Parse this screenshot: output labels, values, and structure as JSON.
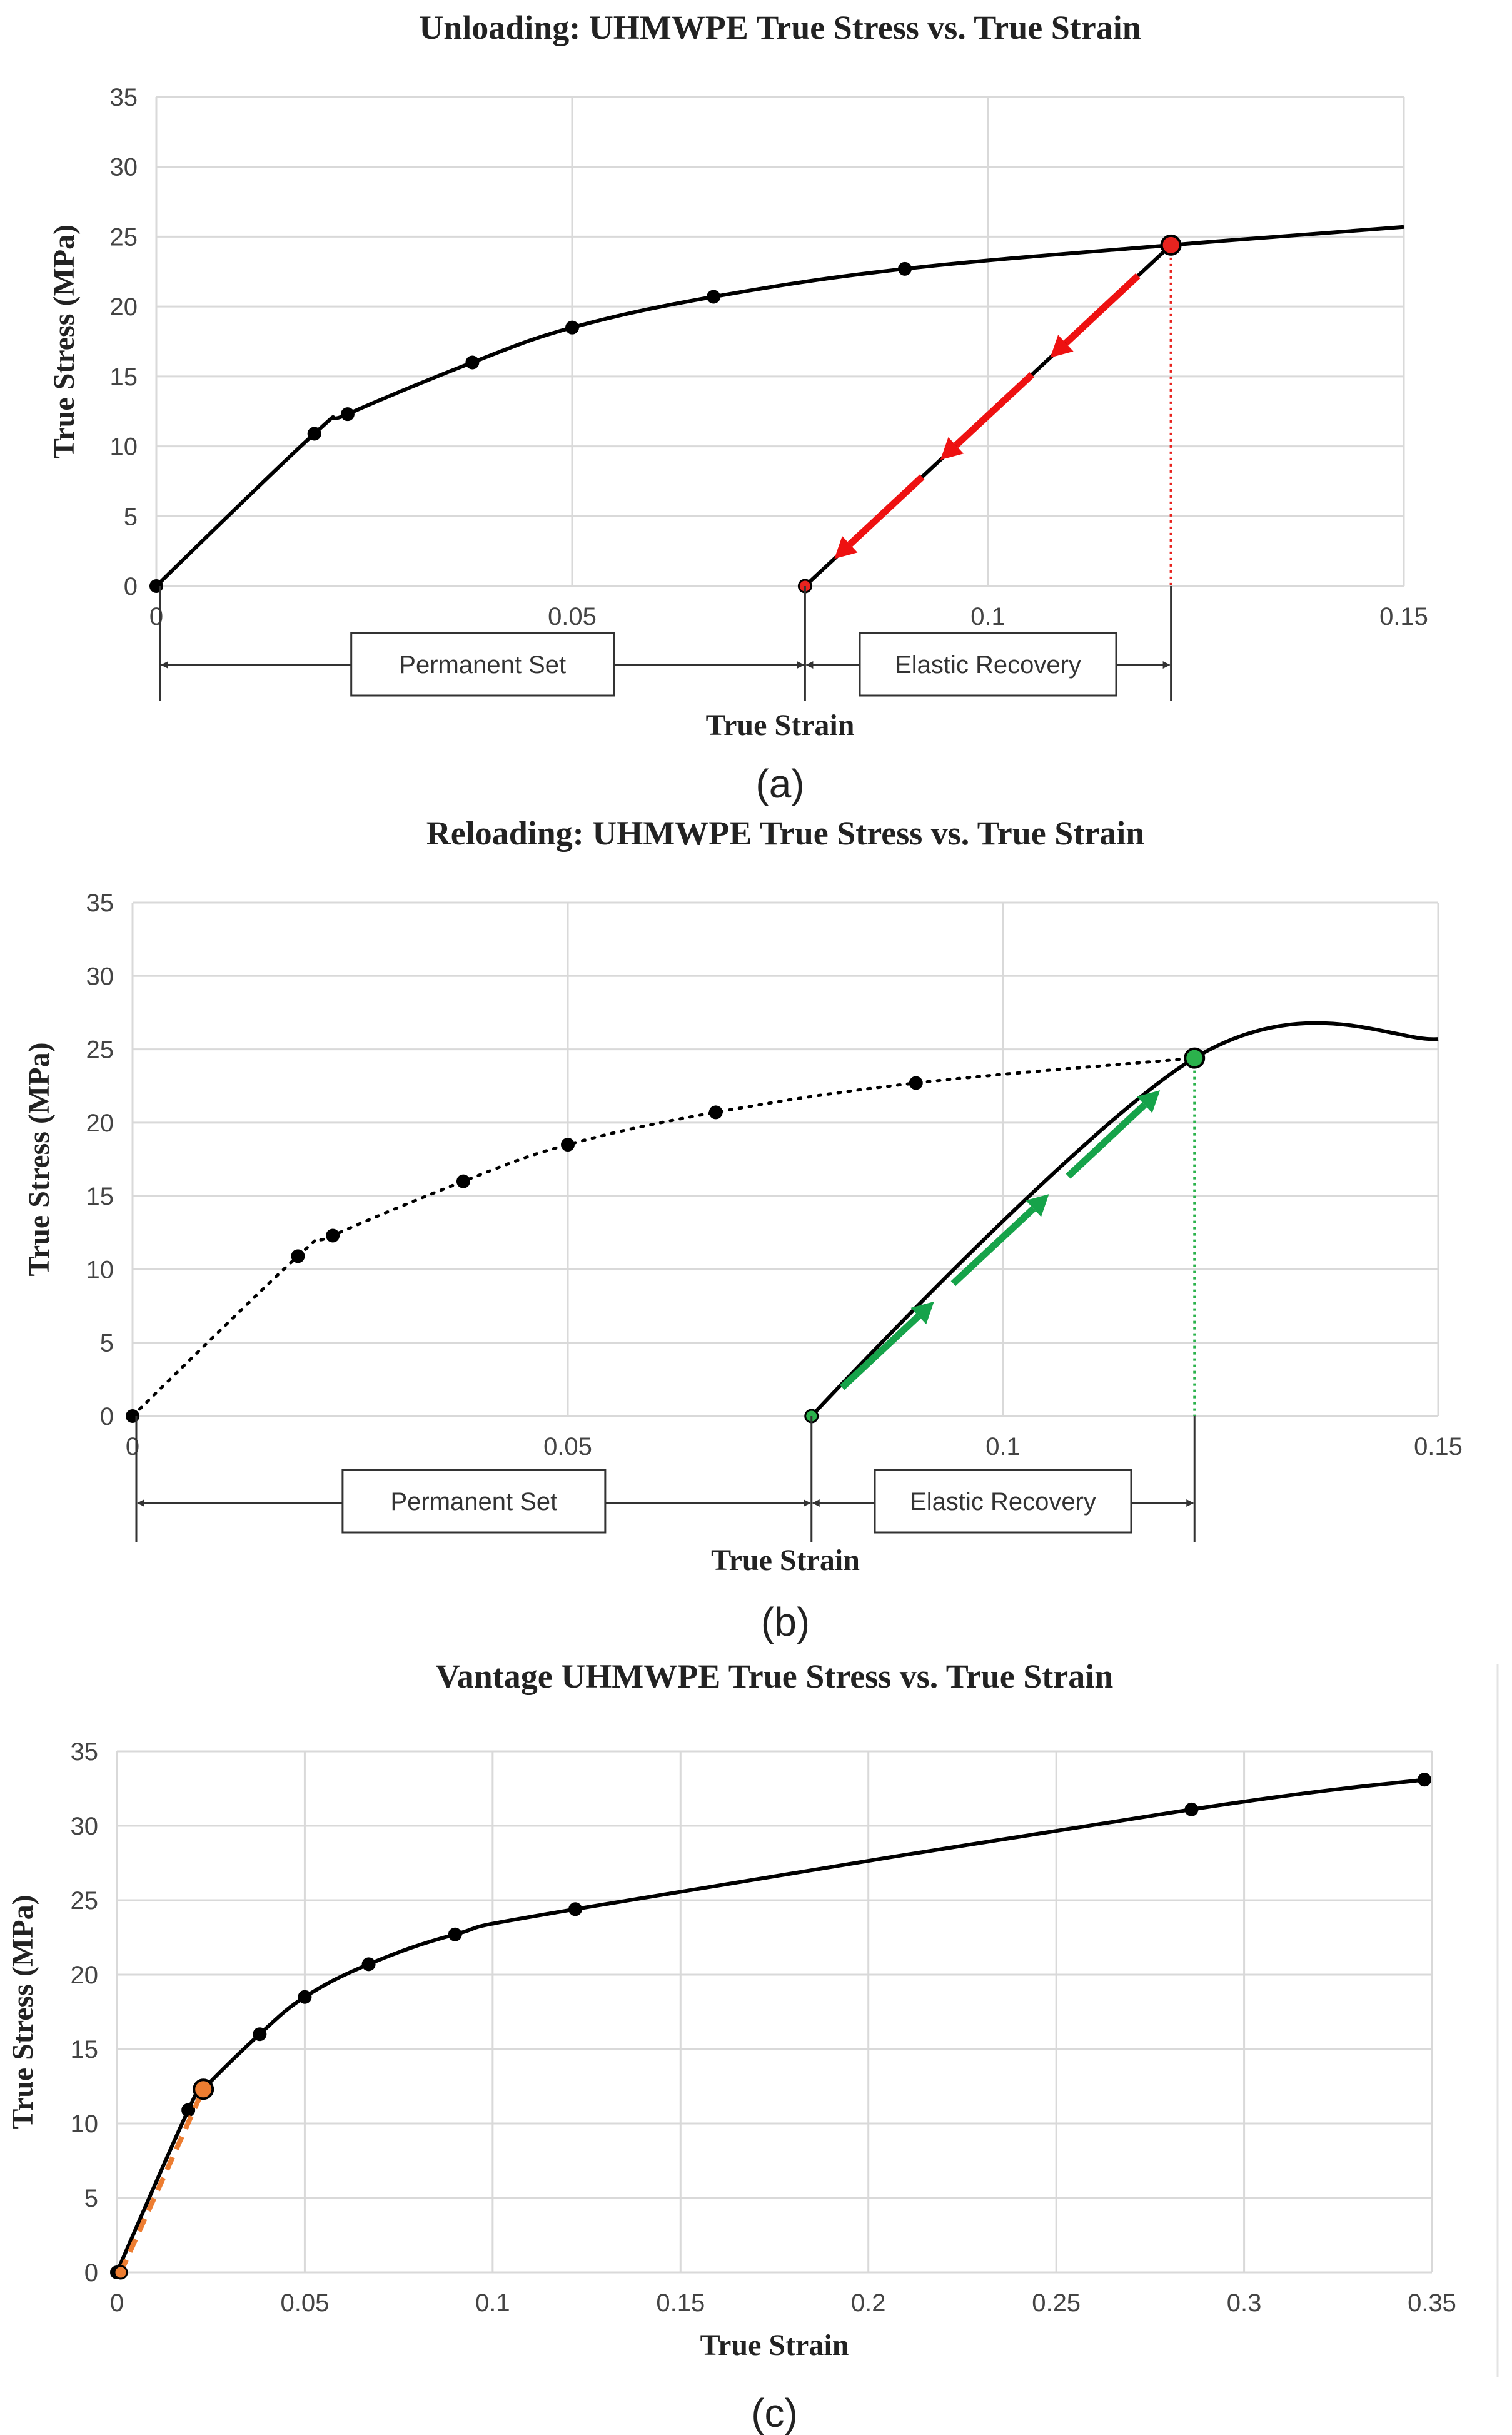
{
  "chart_data": [
    {
      "type": "line",
      "title": "Unloading: UHMWPE True Stress vs. True Strain",
      "xlabel": "True Strain",
      "ylabel": "True Stress (MPa)",
      "xlim": [
        0,
        0.15
      ],
      "ylim": [
        0,
        35
      ],
      "xticks": [
        "0",
        "0.05",
        "0.1",
        "0.15"
      ],
      "yticks": [
        "0",
        "5",
        "10",
        "15",
        "20",
        "25",
        "30",
        "35"
      ],
      "grid": true,
      "series": [
        {
          "style": "solid",
          "color": "#000000",
          "x": [
            0,
            0.019,
            0.023,
            0.038,
            0.05,
            0.067,
            0.09,
            0.122,
            0.15
          ],
          "y": [
            0,
            10.9,
            12.3,
            16.0,
            18.5,
            20.7,
            22.7,
            24.4,
            25.7
          ],
          "markers": [
            0,
            1,
            2,
            3,
            4,
            5,
            6
          ]
        },
        {
          "style": "solid",
          "color": "#000000",
          "x": [
            0.078,
            0.122
          ],
          "y": [
            0,
            24.4
          ]
        }
      ],
      "highlight_points": [
        {
          "x": 0.122,
          "y": 24.4,
          "color": "#e8231f"
        },
        {
          "x": 0.078,
          "y": 0,
          "color": "#e8231f"
        }
      ],
      "arrows": {
        "color": "#ee1111",
        "direction": "down"
      },
      "drop_line_color": "#e8231f",
      "annotations": {
        "permanent_set": "Permanent Set",
        "elastic_recovery": "Elastic Recovery"
      },
      "panel_label": "(a)"
    },
    {
      "type": "line",
      "title": "Reloading: UHMWPE True Stress vs. True Strain",
      "xlabel": "True Strain",
      "ylabel": "True Stress (MPa)",
      "xlim": [
        0,
        0.15
      ],
      "ylim": [
        0,
        35
      ],
      "xticks": [
        "0",
        "0.05",
        "0.1",
        "0.15"
      ],
      "yticks": [
        "0",
        "5",
        "10",
        "15",
        "20",
        "25",
        "30",
        "35"
      ],
      "grid": true,
      "series": [
        {
          "style": "dotted",
          "color": "#000000",
          "x": [
            0,
            0.019,
            0.023,
            0.038,
            0.05,
            0.067,
            0.09,
            0.122
          ],
          "y": [
            0,
            10.9,
            12.3,
            16.0,
            18.5,
            20.7,
            22.7,
            24.4
          ],
          "markers": [
            0,
            1,
            2,
            3,
            4,
            5,
            6
          ]
        },
        {
          "style": "solid",
          "color": "#000000",
          "x": [
            0.078,
            0.122,
            0.15
          ],
          "y": [
            0,
            24.4,
            25.7
          ]
        }
      ],
      "highlight_points": [
        {
          "x": 0.122,
          "y": 24.4,
          "color": "#2bb24c"
        },
        {
          "x": 0.078,
          "y": 0,
          "color": "#2bb24c"
        }
      ],
      "arrows": {
        "color": "#16a34a",
        "direction": "up"
      },
      "drop_line_color": "#2bb24c",
      "annotations": {
        "permanent_set": "Permanent Set",
        "elastic_recovery": "Elastic Recovery"
      },
      "panel_label": "(b)"
    },
    {
      "type": "line",
      "title": "Vantage UHMWPE True Stress vs. True Strain",
      "xlabel": "True Strain",
      "ylabel": "True Stress (MPa)",
      "xlim": [
        0,
        0.35
      ],
      "ylim": [
        0,
        35
      ],
      "xticks": [
        "0",
        "0.05",
        "0.1",
        "0.15",
        "0.2",
        "0.25",
        "0.3",
        "0.35"
      ],
      "yticks": [
        "0",
        "5",
        "10",
        "15",
        "20",
        "25",
        "30",
        "35"
      ],
      "grid": true,
      "series": [
        {
          "style": "solid",
          "color": "#000000",
          "x": [
            0,
            0.019,
            0.023,
            0.038,
            0.05,
            0.067,
            0.09,
            0.122,
            0.286,
            0.348
          ],
          "y": [
            0,
            10.9,
            12.3,
            16.0,
            18.5,
            20.7,
            22.7,
            24.4,
            31.1,
            33.1
          ],
          "markers": [
            0,
            1,
            2,
            3,
            4,
            5,
            6,
            7,
            8,
            9
          ]
        },
        {
          "style": "dashed",
          "color": "#ed7d31",
          "x": [
            0.001,
            0.023
          ],
          "y": [
            0,
            12.3
          ]
        }
      ],
      "highlight_points": [
        {
          "x": 0.023,
          "y": 12.3,
          "color": "#ed7d31"
        },
        {
          "x": 0.001,
          "y": 0,
          "color": "#ed7d31"
        }
      ],
      "panel_label": "(c)"
    }
  ]
}
